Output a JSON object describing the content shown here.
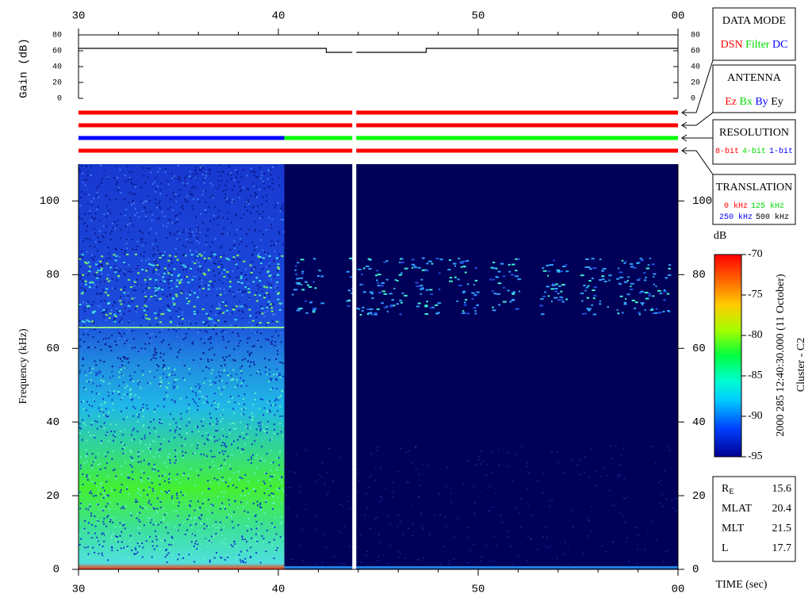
{
  "chart_data": [
    {
      "type": "line",
      "y_label": "Gain (dB)",
      "xlim": [
        30,
        60
      ],
      "xticks": [
        30,
        40,
        50,
        {
          "value": 60,
          "label": "00"
        }
      ],
      "xminorticks": [
        32,
        34,
        36,
        38,
        42,
        44,
        46,
        48,
        52,
        54,
        56,
        58
      ],
      "ylim": [
        0,
        80
      ],
      "yticks": [
        0,
        20,
        40,
        60,
        80
      ],
      "color": "#000000",
      "x": [
        30,
        42.4,
        42.4,
        43.7,
        43.8,
        43.9,
        47.4,
        47.4,
        60
      ],
      "values": [
        63,
        63,
        58,
        58,
        null,
        58,
        58,
        63,
        63
      ]
    },
    {
      "type": "status_bars",
      "xlim": [
        30,
        60
      ],
      "rows": [
        {
          "legend": {
            "title": "DATA MODE",
            "items": [
              [
                {
                  "text": "DSN",
                  "color": "#ff0000"
                },
                {
                  "text": "Filter",
                  "color": "#00dd00"
                },
                {
                  "text": "DC",
                  "color": "#0000ff"
                }
              ]
            ]
          },
          "segments": [
            {
              "start": 30,
              "end": 43.7,
              "color": "#ff0000"
            },
            {
              "start": 43.9,
              "end": 60,
              "color": "#ff0000"
            }
          ]
        },
        {
          "legend": {
            "title": "ANTENNA",
            "items": [
              [
                {
                  "text": "Ez",
                  "color": "#ff0000"
                },
                {
                  "text": "Bx",
                  "color": "#00dd00"
                },
                {
                  "text": "By",
                  "color": "#0000ff"
                },
                {
                  "text": "Ey",
                  "color": "#000000"
                }
              ]
            ]
          },
          "segments": [
            {
              "start": 30,
              "end": 43.7,
              "color": "#ff0000"
            },
            {
              "start": 43.9,
              "end": 60,
              "color": "#ff0000"
            }
          ]
        },
        {
          "legend": {
            "title": "RESOLUTION",
            "items": [
              [
                {
                  "text": "8-bit",
                  "color": "#ff0000"
                },
                {
                  "text": "4-bit",
                  "color": "#00dd00"
                },
                {
                  "text": "1-bit",
                  "color": "#0000ff"
                }
              ]
            ]
          },
          "segments": [
            {
              "start": 30,
              "end": 40.3,
              "color": "#0000ff"
            },
            {
              "start": 40.3,
              "end": 43.7,
              "color": "#00ff00"
            },
            {
              "start": 43.9,
              "end": 60,
              "color": "#00ff00"
            }
          ]
        },
        {
          "legend": {
            "title": "TRANSLATION",
            "items": [
              [
                {
                  "text": "0 kHz",
                  "color": "#ff0000"
                },
                {
                  "text": "125 kHz",
                  "color": "#00dd00"
                }
              ],
              [
                {
                  "text": "250 kHz",
                  "color": "#0000ff"
                },
                {
                  "text": "500 kHz",
                  "color": "#000000"
                }
              ]
            ]
          },
          "segments": [
            {
              "start": 30,
              "end": 43.7,
              "color": "#ff0000"
            },
            {
              "start": 43.9,
              "end": 60,
              "color": "#ff0000"
            }
          ]
        }
      ]
    },
    {
      "type": "spectrogram",
      "x_label": "TIME (sec)",
      "y_label": "Frequency (kHz)",
      "xlim": [
        30,
        60
      ],
      "xticks": [
        30,
        40,
        50,
        {
          "value": 60,
          "label": "00"
        }
      ],
      "xminorticks": [
        32,
        34,
        36,
        38,
        42,
        44,
        46,
        48,
        52,
        54,
        56,
        58
      ],
      "ylim": [
        0,
        110
      ],
      "yticks": [
        0,
        20,
        40,
        60,
        80,
        100
      ],
      "colorbar": {
        "label": "dB",
        "lim": [
          -95,
          -70
        ],
        "ticks": [
          -95,
          -90,
          -85,
          -80,
          -75,
          -70
        ]
      },
      "side_text": [
        "2000 285 12:40:30.000 (11 October)",
        "Cluster - C2"
      ],
      "info": [
        {
          "label": "R",
          "sub": "E",
          "value": 15.6
        },
        {
          "label": "MLAT",
          "value": 20.4
        },
        {
          "label": "MLT",
          "value": 21.5
        },
        {
          "label": "L",
          "value": 17.7
        }
      ]
    }
  ]
}
